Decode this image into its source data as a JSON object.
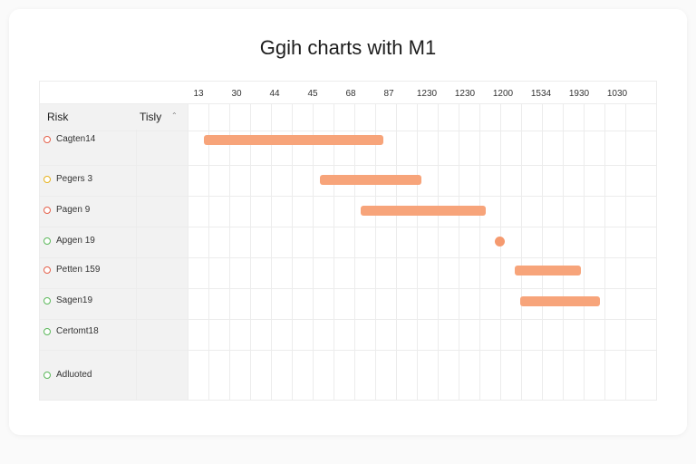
{
  "title": "Ggih charts with M1",
  "ticks": [
    "13",
    "30",
    "44",
    "45",
    "68",
    "87",
    "1230",
    "1230",
    "1200",
    "1534",
    "1930",
    "1030"
  ],
  "columns": {
    "risk": "Risk",
    "tisly": "Tisly"
  },
  "rows": [
    {
      "label": "Cagten14",
      "status_color": "#e5604a"
    },
    {
      "label": "Pegers 3",
      "status_color": "#e7b21c"
    },
    {
      "label": "Pagen 9",
      "status_color": "#e5604a"
    },
    {
      "label": "Apgen 19",
      "status_color": "#5bb85a"
    },
    {
      "label": "Petten 159",
      "status_color": "#e5604a"
    },
    {
      "label": "Sagen19",
      "status_color": "#5bb85a"
    },
    {
      "label": "Certomt18",
      "status_color": "#5bb85a"
    },
    {
      "label": "Adluoted",
      "status_color": "#5bb85a"
    }
  ],
  "tasks": [
    {
      "row": 0,
      "type": "bar",
      "start_tick": 0.15,
      "end_tick": 4.85
    },
    {
      "row": 1,
      "type": "bar",
      "start_tick": 3.2,
      "end_tick": 5.85
    },
    {
      "row": 2,
      "type": "bar",
      "start_tick": 4.25,
      "end_tick": 7.55
    },
    {
      "row": 3,
      "type": "milestone",
      "at_tick": 7.9
    },
    {
      "row": 4,
      "type": "bar",
      "start_tick": 8.3,
      "end_tick": 10.05
    },
    {
      "row": 5,
      "type": "bar",
      "start_tick": 8.45,
      "end_tick": 10.55
    }
  ],
  "colors": {
    "bar": "#f7a47a",
    "milestone": "#f59a6f",
    "sidebar": "#f2f2f2"
  }
}
